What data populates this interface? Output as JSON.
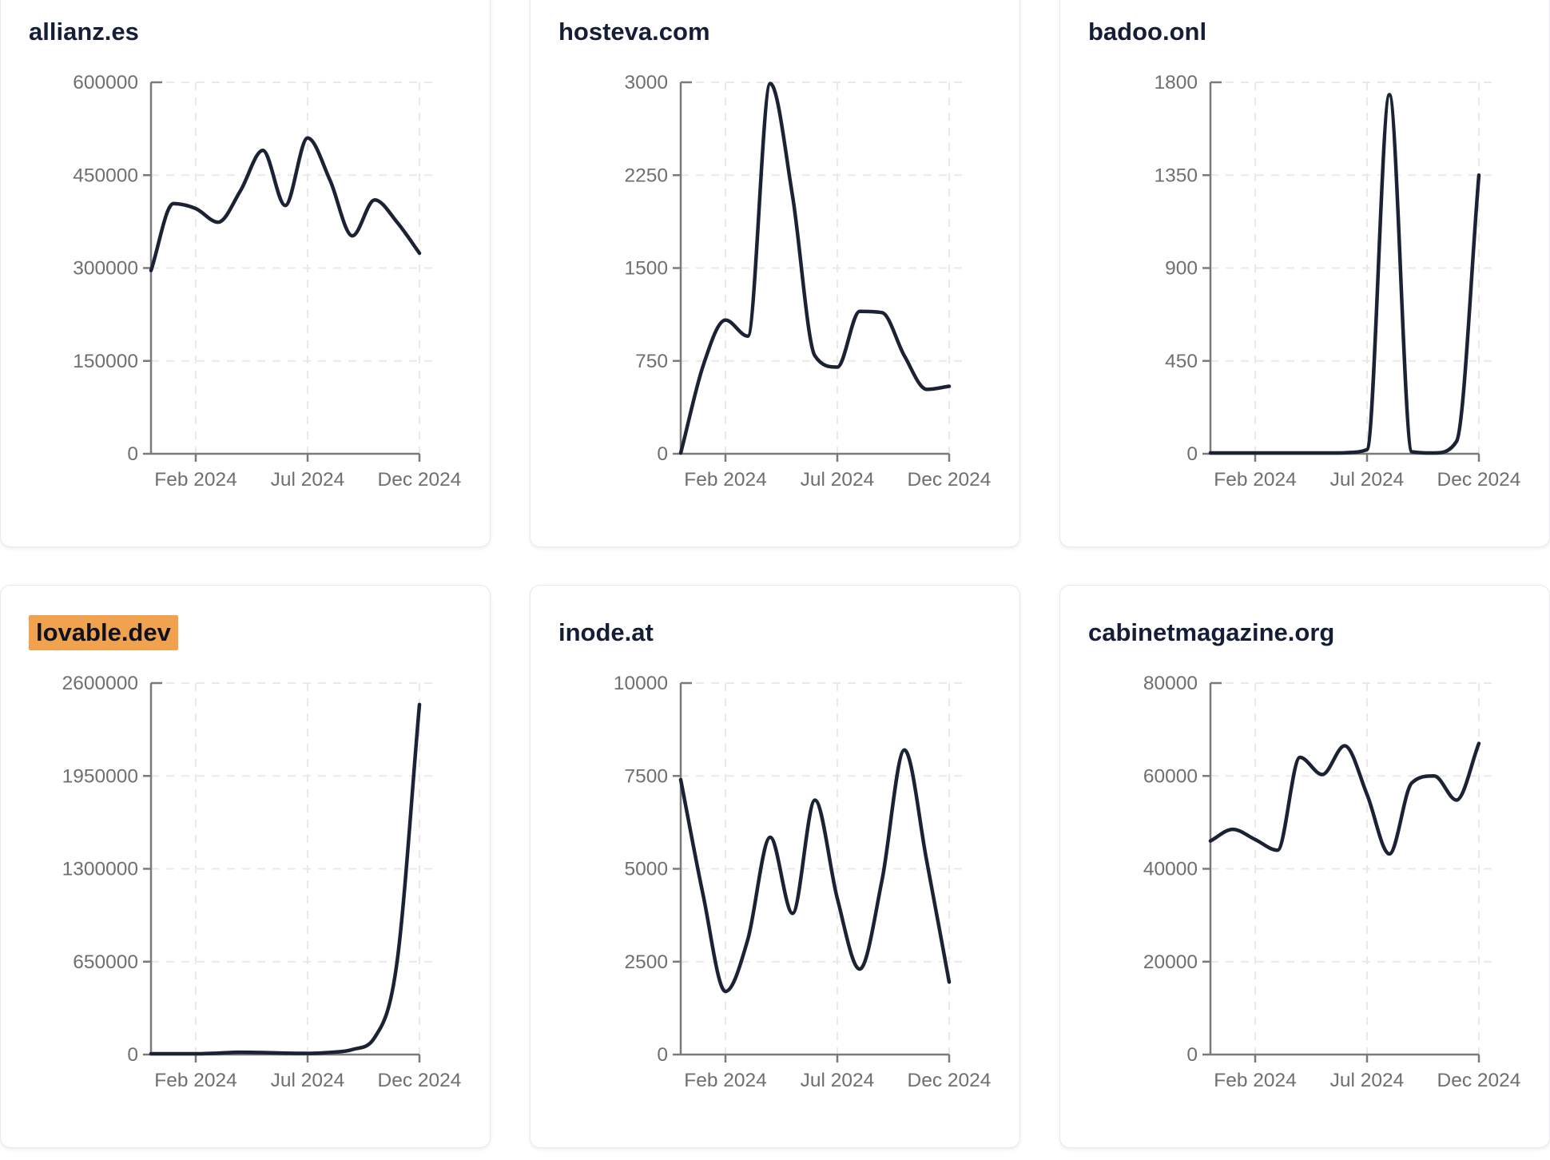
{
  "page": {
    "background": "#ffffff",
    "layout": "3x2-grid-of-domain-traffic-cards"
  },
  "style": {
    "line_color": "#1a2234",
    "grid_color": "#e9e9e9",
    "axis_color": "#7a7a7a",
    "tick_label_color": "#6f6f6f",
    "title_color": "#141e36",
    "highlight_color": "#f1a24e",
    "card_border_color": "#e9e9eb",
    "card_background": "#ffffff"
  },
  "chart_data": [
    {
      "type": "line",
      "title": "allianz.es",
      "title_highlighted": false,
      "ylim": [
        0,
        600000
      ],
      "y_ticks": [
        0,
        150000,
        300000,
        450000,
        600000
      ],
      "x_tick_labels": [
        "Feb 2024",
        "Jul 2024",
        "Dec 2024"
      ],
      "x_tick_point_indices": [
        2,
        7,
        12
      ],
      "n_points": 13,
      "values": [
        296000,
        404000,
        396000,
        374000,
        425000,
        490000,
        401000,
        510000,
        442000,
        352000,
        410000,
        374000,
        324000
      ],
      "grid": "dashed",
      "legend": "none"
    },
    {
      "type": "line",
      "title": "hosteva.com",
      "title_highlighted": false,
      "ylim": [
        0,
        3000
      ],
      "y_ticks": [
        0,
        750,
        1500,
        2250,
        3000
      ],
      "x_tick_labels": [
        "Feb 2024",
        "Jul 2024",
        "Dec 2024"
      ],
      "x_tick_point_indices": [
        2,
        7,
        12
      ],
      "n_points": 13,
      "values": [
        0,
        710,
        1080,
        950,
        2990,
        2080,
        790,
        700,
        1150,
        1140,
        790,
        520,
        545
      ],
      "grid": "dashed",
      "legend": "none"
    },
    {
      "type": "line",
      "title": "badoo.onl",
      "title_highlighted": false,
      "ylim": [
        0,
        1800
      ],
      "y_ticks": [
        0,
        450,
        900,
        1350,
        1800
      ],
      "x_tick_labels": [
        "Feb 2024",
        "Jul 2024",
        "Dec 2024"
      ],
      "x_tick_point_indices": [
        2,
        7,
        12
      ],
      "n_points": 13,
      "values": [
        2,
        2,
        2,
        2,
        2,
        2,
        5,
        20,
        1740,
        10,
        2,
        60,
        1350
      ],
      "grid": "dashed",
      "legend": "none"
    },
    {
      "type": "line",
      "title": "lovable.dev",
      "title_highlighted": true,
      "ylim": [
        0,
        2600000
      ],
      "y_ticks": [
        0,
        650000,
        1300000,
        1950000,
        2600000
      ],
      "x_tick_labels": [
        "Feb 2024",
        "Jul 2024",
        "Dec 2024"
      ],
      "x_tick_point_indices": [
        2,
        7,
        12
      ],
      "n_points": 13,
      "values": [
        2000,
        2000,
        4000,
        10000,
        16000,
        14000,
        10000,
        8000,
        15000,
        35000,
        120000,
        650000,
        2450000
      ],
      "grid": "dashed",
      "legend": "none"
    },
    {
      "type": "line",
      "title": "inode.at",
      "title_highlighted": false,
      "ylim": [
        0,
        10000
      ],
      "y_ticks": [
        0,
        2500,
        5000,
        7500,
        10000
      ],
      "x_tick_labels": [
        "Feb 2024",
        "Jul 2024",
        "Dec 2024"
      ],
      "x_tick_point_indices": [
        2,
        7,
        12
      ],
      "n_points": 13,
      "values": [
        7400,
        4300,
        1700,
        3100,
        5850,
        3800,
        6850,
        4200,
        2300,
        4700,
        8200,
        5200,
        1950
      ],
      "grid": "dashed",
      "legend": "none"
    },
    {
      "type": "line",
      "title": "cabinetmagazine.org",
      "title_highlighted": false,
      "ylim": [
        0,
        80000
      ],
      "y_ticks": [
        0,
        20000,
        40000,
        60000,
        80000
      ],
      "x_tick_labels": [
        "Feb 2024",
        "Jul 2024",
        "Dec 2024"
      ],
      "x_tick_point_indices": [
        2,
        7,
        12
      ],
      "n_points": 13,
      "values": [
        46000,
        48500,
        46300,
        44000,
        64000,
        60300,
        66500,
        56000,
        43200,
        58500,
        60000,
        54800,
        67000
      ],
      "grid": "dashed",
      "legend": "none"
    }
  ]
}
